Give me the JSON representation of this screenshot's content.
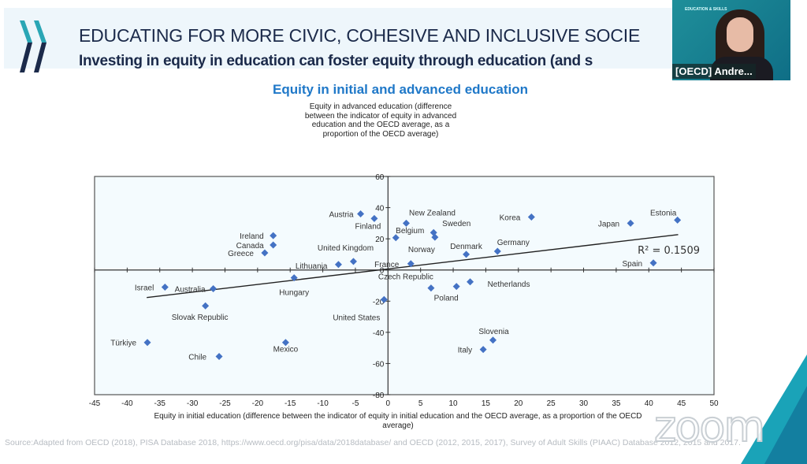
{
  "slide": {
    "title": "EDUCATING FOR MORE CIVIC, COHESIVE AND INCLUSIVE SOCIE",
    "subtitle": "Investing in equity in education can foster equity through education (and s",
    "source": "Source:Adapted from OECD (2018), PISA Database 2018, https://www.oecd.org/pisa/data/2018database/ and OECD (2012, 2015, 2017), Survey of Adult Skills (PIAAC) Database 2012, 2015 and 2017.",
    "logo": "OECD"
  },
  "video": {
    "participant_name": "[OECD] Andre...",
    "background_brand": "EDUCATION & SKILLS"
  },
  "watermark": "zoom",
  "colors": {
    "title": "#1b2a4a",
    "chart_title": "#1f78c8",
    "marker": "#4472c4",
    "accent_teal": "#1aa3b8"
  },
  "chart_data": {
    "type": "scatter",
    "title": "Equity in initial and advanced education",
    "xlabel": "Equity in initial education (difference between the indicator of equity in initial education and the OECD average, as a proportion of the OECD average)",
    "ylabel": "Equity in advanced education (difference between the indicator of equity in advanced education and the OECD average, as a proportion of the OECD average)",
    "xlim": [
      -45,
      50
    ],
    "ylim": [
      -80,
      60
    ],
    "xticks": [
      -45,
      -40,
      -35,
      -30,
      -25,
      -20,
      -15,
      -10,
      -5,
      0,
      5,
      10,
      15,
      20,
      25,
      30,
      35,
      40,
      45,
      50
    ],
    "yticks": [
      -80,
      -60,
      -40,
      -20,
      0,
      20,
      40,
      60
    ],
    "grid": false,
    "marker": "diamond",
    "trendline": {
      "x": [
        -37,
        44.5
      ],
      "y": [
        -17.7,
        22.7
      ],
      "label": "R² = 0.1509"
    },
    "points": [
      {
        "name": "Austria",
        "x": -4.2,
        "y": 36
      },
      {
        "name": "Finland",
        "x": -2.1,
        "y": 33
      },
      {
        "name": "Ireland",
        "x": -17.6,
        "y": 22
      },
      {
        "name": "Canada",
        "x": -17.6,
        "y": 16
      },
      {
        "name": "Greece",
        "x": -18.9,
        "y": 11
      },
      {
        "name": "Lithuania",
        "x": -7.6,
        "y": 3.5
      },
      {
        "name": "United Kingdom",
        "x": -5.3,
        "y": 5.5
      },
      {
        "name": "Hungary",
        "x": -14.4,
        "y": -5
      },
      {
        "name": "Israel",
        "x": -34.2,
        "y": -11
      },
      {
        "name": "Australia",
        "x": -26.8,
        "y": -12
      },
      {
        "name": "Slovak Republic",
        "x": -28,
        "y": -23
      },
      {
        "name": "United States",
        "x": -0.6,
        "y": -19
      },
      {
        "name": "Türkiye",
        "x": -36.9,
        "y": -46.5
      },
      {
        "name": "Chile",
        "x": -25.9,
        "y": -55.5
      },
      {
        "name": "Mexico",
        "x": -15.7,
        "y": -46.5
      },
      {
        "name": "Belgium",
        "x": 1.2,
        "y": 20.7
      },
      {
        "name": "New Zealand",
        "x": 2.8,
        "y": 30
      },
      {
        "name": "Sweden",
        "x": 7,
        "y": 24
      },
      {
        "name": "Norway",
        "x": 7.2,
        "y": 21
      },
      {
        "name": "France",
        "x": 3.5,
        "y": 4
      },
      {
        "name": "Korea",
        "x": 22,
        "y": 34
      },
      {
        "name": "Japan",
        "x": 37.2,
        "y": 30
      },
      {
        "name": "Estonia",
        "x": 44.4,
        "y": 32
      },
      {
        "name": "Germany",
        "x": 16.8,
        "y": 12
      },
      {
        "name": "Denmark",
        "x": 12,
        "y": 10
      },
      {
        "name": "Spain",
        "x": 40.7,
        "y": 4.5
      },
      {
        "name": "Czech Republic",
        "x": 6.6,
        "y": -11.6
      },
      {
        "name": "Poland",
        "x": 10.5,
        "y": -10.6
      },
      {
        "name": "Netherlands",
        "x": 12.6,
        "y": -7.6
      },
      {
        "name": "Slovenia",
        "x": 16.1,
        "y": -45
      },
      {
        "name": "Italy",
        "x": 14.6,
        "y": -51
      }
    ]
  }
}
